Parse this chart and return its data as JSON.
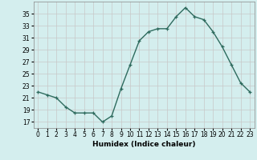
{
  "x": [
    0,
    1,
    2,
    3,
    4,
    5,
    6,
    7,
    8,
    9,
    10,
    11,
    12,
    13,
    14,
    15,
    16,
    17,
    18,
    19,
    20,
    21,
    22,
    23
  ],
  "y": [
    22,
    21.5,
    21,
    19.5,
    18.5,
    18.5,
    18.5,
    17,
    18,
    22.5,
    26.5,
    30.5,
    32,
    32.5,
    32.5,
    34.5,
    36,
    34.5,
    34,
    32,
    29.5,
    26.5,
    23.5,
    22
  ],
  "line_color": "#2e6b5e",
  "marker": "+",
  "xlabel": "Humidex (Indice chaleur)",
  "xlim": [
    -0.5,
    23.5
  ],
  "ylim": [
    16,
    37
  ],
  "yticks": [
    17,
    19,
    21,
    23,
    25,
    27,
    29,
    31,
    33,
    35
  ],
  "xticks": [
    0,
    1,
    2,
    3,
    4,
    5,
    6,
    7,
    8,
    9,
    10,
    11,
    12,
    13,
    14,
    15,
    16,
    17,
    18,
    19,
    20,
    21,
    22,
    23
  ],
  "bg_color": "#d4eeee",
  "grid_color": "#b8d8d8",
  "xlabel_fontsize": 6.5,
  "tick_fontsize": 5.5
}
